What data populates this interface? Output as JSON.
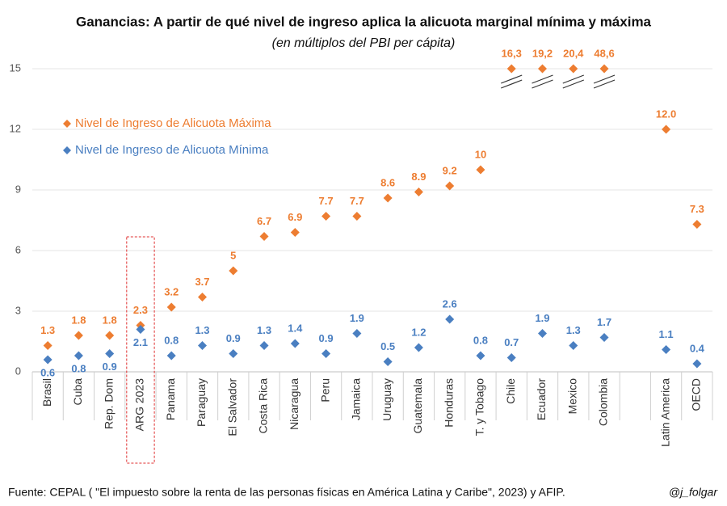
{
  "chart_data": {
    "type": "scatter",
    "title": "Ganancias: A partir de qué nivel de ingreso aplica la alicuota marginal mínima y máxima",
    "subtitle": "(en múltiplos del PBI per cápita)",
    "categories": [
      "Brasil",
      "Cuba",
      "Rep. Dom",
      "ARG 2023",
      "Panama",
      "Paraguay",
      "El Salvador",
      "Costa Rica",
      "Nicaragua",
      "Peru",
      "Jamaica",
      "Uruguay",
      "Guatemala",
      "Honduras",
      "T. y Tobago",
      "Chile",
      "Ecuador",
      "Mexico",
      "Colombia",
      null,
      "Latin America",
      "OECD"
    ],
    "series": [
      {
        "name": "Nivel de Ingreso de Alicuota Máxima",
        "color": "#ed7d31",
        "values": [
          1.3,
          1.8,
          1.8,
          2.3,
          3.2,
          3.7,
          5,
          6.7,
          6.9,
          7.7,
          7.7,
          8.6,
          8.9,
          9.2,
          10,
          16.3,
          19.2,
          20.4,
          48.6,
          null,
          12.0,
          7.3
        ],
        "value_labels": [
          "1.3",
          "1.8",
          "1.8",
          "2.3",
          "3.2",
          "3.7",
          "5",
          "6.7",
          "6.9",
          "7.7",
          "7.7",
          "8.6",
          "8.9",
          "9.2",
          "10",
          "16,3",
          "19,2",
          "20,4",
          "48,6",
          null,
          "12.0",
          "7.3"
        ]
      },
      {
        "name": "Nivel de Ingreso de Alicuota Mínima",
        "color": "#4a7fc1",
        "values": [
          0.6,
          0.8,
          0.9,
          2.1,
          0.8,
          1.3,
          0.9,
          1.3,
          1.4,
          0.9,
          1.9,
          0.5,
          1.2,
          2.6,
          0.8,
          0.7,
          1.9,
          1.3,
          1.7,
          null,
          1.1,
          0.4
        ]
      }
    ],
    "ylim": [
      0,
      15.6
    ],
    "yticks": [
      0,
      3,
      6,
      9,
      12,
      15
    ],
    "grid": true,
    "axis_break": 15,
    "legend": "upper left",
    "source": "Fuente: CEPAL ( \"El impuesto sobre la renta de las personas físicas en América Latina y Caribe\", 2023) y AFIP.",
    "credit": "@j_folgar"
  }
}
